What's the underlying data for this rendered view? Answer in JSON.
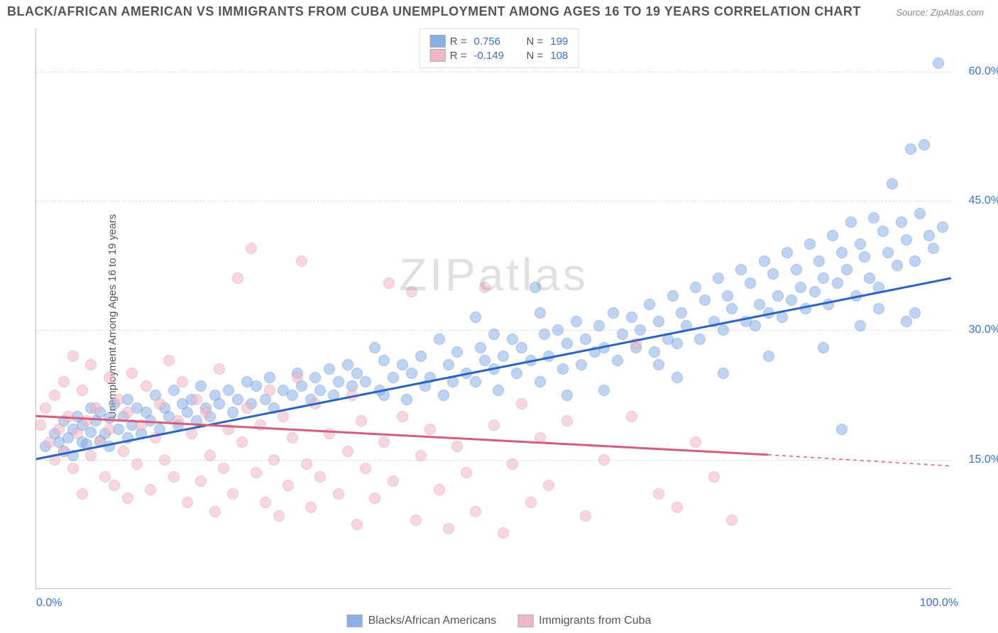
{
  "title": "BLACK/AFRICAN AMERICAN VS IMMIGRANTS FROM CUBA UNEMPLOYMENT AMONG AGES 16 TO 19 YEARS CORRELATION CHART",
  "source": "Source: ZipAtlas.com",
  "watermark": "ZIPatlas",
  "yAxisLabel": "Unemployment Among Ages 16 to 19 years",
  "chart": {
    "type": "scatter",
    "xlim": [
      0,
      100
    ],
    "ylim": [
      0,
      65
    ],
    "xTicks": [
      "0.0%",
      "100.0%"
    ],
    "yTicks": [
      {
        "value": 15,
        "label": "15.0%"
      },
      {
        "value": 30,
        "label": "30.0%"
      },
      {
        "value": 45,
        "label": "45.0%"
      },
      {
        "value": 60,
        "label": "60.0%"
      }
    ],
    "grid_color": "#dddddd",
    "background_color": "#ffffff",
    "marker_radius": 8,
    "marker_opacity": 0.55,
    "axis_label_color": "#3b6fd6",
    "title_fontsize": 18,
    "label_fontsize": 15
  },
  "series": [
    {
      "name": "Blacks/African Americans",
      "color": "#89aee8",
      "stroke": "#5f8fd4",
      "line_color": "#2a63c8",
      "line_width": 3,
      "stats": {
        "R": "0.756",
        "N": "199"
      },
      "trend": {
        "x1": 0,
        "y1": 15,
        "x2": 100,
        "y2": 36
      },
      "points": [
        [
          1,
          16.5
        ],
        [
          2,
          18
        ],
        [
          2.5,
          17
        ],
        [
          3,
          16
        ],
        [
          3,
          19.5
        ],
        [
          3.5,
          17.5
        ],
        [
          4,
          15.5
        ],
        [
          4,
          18.5
        ],
        [
          4.5,
          20
        ],
        [
          5,
          17
        ],
        [
          5,
          19
        ],
        [
          5.5,
          16.8
        ],
        [
          6,
          18.2
        ],
        [
          6,
          21
        ],
        [
          6.5,
          19.5
        ],
        [
          7,
          17.2
        ],
        [
          7,
          20.5
        ],
        [
          7.5,
          18
        ],
        [
          8,
          19.8
        ],
        [
          8,
          16.5
        ],
        [
          8.5,
          21.5
        ],
        [
          9,
          18.5
        ],
        [
          9.5,
          20
        ],
        [
          10,
          17.5
        ],
        [
          10,
          22
        ],
        [
          10.5,
          19
        ],
        [
          11,
          21
        ],
        [
          11.5,
          18
        ],
        [
          12,
          20.5
        ],
        [
          12.5,
          19.5
        ],
        [
          13,
          22.5
        ],
        [
          13.5,
          18.5
        ],
        [
          14,
          21
        ],
        [
          14.5,
          20
        ],
        [
          15,
          23
        ],
        [
          15.5,
          19
        ],
        [
          16,
          21.5
        ],
        [
          16.5,
          20.5
        ],
        [
          17,
          22
        ],
        [
          17.5,
          19.5
        ],
        [
          18,
          23.5
        ],
        [
          18.5,
          21
        ],
        [
          19,
          20
        ],
        [
          19.5,
          22.5
        ],
        [
          20,
          21.5
        ],
        [
          21,
          23
        ],
        [
          21.5,
          20.5
        ],
        [
          22,
          22
        ],
        [
          23,
          24
        ],
        [
          23.5,
          21.5
        ],
        [
          24,
          23.5
        ],
        [
          25,
          22
        ],
        [
          25.5,
          24.5
        ],
        [
          26,
          21
        ],
        [
          27,
          23
        ],
        [
          28,
          22.5
        ],
        [
          28.5,
          25
        ],
        [
          29,
          23.5
        ],
        [
          30,
          22
        ],
        [
          30.5,
          24.5
        ],
        [
          31,
          23
        ],
        [
          32,
          25.5
        ],
        [
          32.5,
          22.5
        ],
        [
          33,
          24
        ],
        [
          34,
          26
        ],
        [
          34.5,
          23.5
        ],
        [
          35,
          25
        ],
        [
          36,
          24
        ],
        [
          37,
          28
        ],
        [
          37.5,
          23
        ],
        [
          38,
          22.5
        ],
        [
          38,
          26.5
        ],
        [
          39,
          24.5
        ],
        [
          40,
          26
        ],
        [
          40.5,
          22
        ],
        [
          41,
          25
        ],
        [
          42,
          27
        ],
        [
          42.5,
          23.5
        ],
        [
          43,
          24.5
        ],
        [
          44,
          29
        ],
        [
          44.5,
          22.5
        ],
        [
          45,
          26
        ],
        [
          45.5,
          24
        ],
        [
          46,
          27.5
        ],
        [
          47,
          25
        ],
        [
          48,
          24
        ],
        [
          48.5,
          28
        ],
        [
          49,
          26.5
        ],
        [
          50,
          25.5
        ],
        [
          50.5,
          23
        ],
        [
          51,
          27
        ],
        [
          52,
          29
        ],
        [
          52.5,
          25
        ],
        [
          53,
          28
        ],
        [
          54,
          26.5
        ],
        [
          54.5,
          35
        ],
        [
          55,
          24
        ],
        [
          55.5,
          29.5
        ],
        [
          56,
          27
        ],
        [
          57,
          30
        ],
        [
          57.5,
          25.5
        ],
        [
          58,
          28.5
        ],
        [
          59,
          31
        ],
        [
          59.5,
          26
        ],
        [
          60,
          29
        ],
        [
          61,
          27.5
        ],
        [
          61.5,
          30.5
        ],
        [
          62,
          28
        ],
        [
          63,
          32
        ],
        [
          63.5,
          26.5
        ],
        [
          64,
          29.5
        ],
        [
          65,
          31.5
        ],
        [
          65.5,
          28
        ],
        [
          66,
          30
        ],
        [
          67,
          33
        ],
        [
          67.5,
          27.5
        ],
        [
          68,
          31
        ],
        [
          69,
          29
        ],
        [
          69.5,
          34
        ],
        [
          70,
          28.5
        ],
        [
          70.5,
          32
        ],
        [
          71,
          30.5
        ],
        [
          72,
          35
        ],
        [
          72.5,
          29
        ],
        [
          73,
          33.5
        ],
        [
          74,
          31
        ],
        [
          74.5,
          36
        ],
        [
          75,
          30
        ],
        [
          75.5,
          34
        ],
        [
          76,
          32.5
        ],
        [
          77,
          37
        ],
        [
          77.5,
          31
        ],
        [
          78,
          35.5
        ],
        [
          78.5,
          30.5
        ],
        [
          79,
          33
        ],
        [
          79.5,
          38
        ],
        [
          80,
          32
        ],
        [
          80.5,
          36.5
        ],
        [
          81,
          34
        ],
        [
          81.5,
          31.5
        ],
        [
          82,
          39
        ],
        [
          82.5,
          33.5
        ],
        [
          83,
          37
        ],
        [
          83.5,
          35
        ],
        [
          84,
          32.5
        ],
        [
          84.5,
          40
        ],
        [
          85,
          34.5
        ],
        [
          85.5,
          38
        ],
        [
          86,
          36
        ],
        [
          86.5,
          33
        ],
        [
          87,
          41
        ],
        [
          87.5,
          35.5
        ],
        [
          88,
          39
        ],
        [
          88.5,
          37
        ],
        [
          89,
          42.5
        ],
        [
          89.5,
          34
        ],
        [
          90,
          40
        ],
        [
          90.5,
          38.5
        ],
        [
          91,
          36
        ],
        [
          91.5,
          43
        ],
        [
          92,
          35
        ],
        [
          92.5,
          41.5
        ],
        [
          93,
          39
        ],
        [
          93.5,
          47
        ],
        [
          94,
          37.5
        ],
        [
          94.5,
          42.5
        ],
        [
          95,
          40.5
        ],
        [
          95.5,
          51
        ],
        [
          96,
          38
        ],
        [
          96.5,
          43.5
        ],
        [
          97,
          51.5
        ],
        [
          97.5,
          41
        ],
        [
          98,
          39.5
        ],
        [
          98.5,
          61
        ],
        [
          99,
          42
        ],
        [
          88,
          18.5
        ],
        [
          95,
          31
        ],
        [
          96,
          32
        ],
        [
          75,
          25
        ],
        [
          80,
          27
        ],
        [
          70,
          24.5
        ],
        [
          68,
          26
        ],
        [
          62,
          23
        ],
        [
          58,
          22.5
        ],
        [
          90,
          30.5
        ],
        [
          92,
          32.5
        ],
        [
          86,
          28
        ],
        [
          50,
          29.5
        ],
        [
          55,
          32
        ],
        [
          48,
          31.5
        ]
      ]
    },
    {
      "name": "Immigrants from Cuba",
      "color": "#f2b7c4",
      "stroke": "#e593a7",
      "line_color": "#d85d7c",
      "line_width": 3,
      "stats": {
        "R": "-0.149",
        "N": "108"
      },
      "trend": {
        "x1": 0,
        "y1": 20,
        "x2": 80,
        "y2": 15.5
      },
      "trend_ext": {
        "x1": 80,
        "y1": 15.5,
        "x2": 100,
        "y2": 14.2
      },
      "points": [
        [
          0.5,
          19
        ],
        [
          1,
          21
        ],
        [
          1.5,
          17
        ],
        [
          2,
          22.5
        ],
        [
          2,
          15
        ],
        [
          2.5,
          18.5
        ],
        [
          3,
          24
        ],
        [
          3,
          16
        ],
        [
          3.5,
          20
        ],
        [
          4,
          27
        ],
        [
          4,
          14
        ],
        [
          4.5,
          18
        ],
        [
          5,
          23
        ],
        [
          5,
          11
        ],
        [
          5.5,
          19.5
        ],
        [
          6,
          26
        ],
        [
          6,
          15.5
        ],
        [
          6.5,
          21
        ],
        [
          7,
          17
        ],
        [
          7.5,
          13
        ],
        [
          8,
          24.5
        ],
        [
          8,
          18.5
        ],
        [
          8.5,
          12
        ],
        [
          9,
          22
        ],
        [
          9.5,
          16
        ],
        [
          10,
          20.5
        ],
        [
          10,
          10.5
        ],
        [
          10.5,
          25
        ],
        [
          11,
          14.5
        ],
        [
          11.5,
          19
        ],
        [
          12,
          23.5
        ],
        [
          12.5,
          11.5
        ],
        [
          13,
          17.5
        ],
        [
          13.5,
          21.5
        ],
        [
          14,
          15
        ],
        [
          14.5,
          26.5
        ],
        [
          15,
          13
        ],
        [
          15.5,
          19.5
        ],
        [
          16,
          24
        ],
        [
          16.5,
          10
        ],
        [
          17,
          18
        ],
        [
          17.5,
          22
        ],
        [
          18,
          12.5
        ],
        [
          18.5,
          20.5
        ],
        [
          19,
          15.5
        ],
        [
          19.5,
          9
        ],
        [
          20,
          25.5
        ],
        [
          20.5,
          14
        ],
        [
          21,
          18.5
        ],
        [
          21.5,
          11
        ],
        [
          22,
          36
        ],
        [
          22.5,
          17
        ],
        [
          23,
          21
        ],
        [
          23.5,
          39.5
        ],
        [
          24,
          13.5
        ],
        [
          24.5,
          19
        ],
        [
          25,
          10
        ],
        [
          25.5,
          23
        ],
        [
          26,
          15
        ],
        [
          26.5,
          8.5
        ],
        [
          27,
          20
        ],
        [
          27.5,
          12
        ],
        [
          28,
          17.5
        ],
        [
          28.5,
          24.5
        ],
        [
          29,
          38
        ],
        [
          29.5,
          14.5
        ],
        [
          30,
          9.5
        ],
        [
          30.5,
          21.5
        ],
        [
          31,
          13
        ],
        [
          32,
          18
        ],
        [
          33,
          11
        ],
        [
          34,
          16
        ],
        [
          34.5,
          22.5
        ],
        [
          35,
          7.5
        ],
        [
          35.5,
          19.5
        ],
        [
          36,
          14
        ],
        [
          37,
          10.5
        ],
        [
          38,
          17
        ],
        [
          38.5,
          35.5
        ],
        [
          39,
          12.5
        ],
        [
          40,
          20
        ],
        [
          41,
          34.5
        ],
        [
          41.5,
          8
        ],
        [
          42,
          15.5
        ],
        [
          43,
          18.5
        ],
        [
          44,
          11.5
        ],
        [
          45,
          7
        ],
        [
          46,
          16.5
        ],
        [
          47,
          13.5
        ],
        [
          48,
          9
        ],
        [
          49,
          35
        ],
        [
          50,
          19
        ],
        [
          51,
          6.5
        ],
        [
          52,
          14.5
        ],
        [
          53,
          21.5
        ],
        [
          54,
          10
        ],
        [
          55,
          17.5
        ],
        [
          56,
          12
        ],
        [
          58,
          19.5
        ],
        [
          60,
          8.5
        ],
        [
          62,
          15
        ],
        [
          65,
          20
        ],
        [
          65.5,
          28.5
        ],
        [
          68,
          11
        ],
        [
          70,
          9.5
        ],
        [
          72,
          17
        ],
        [
          74,
          13
        ],
        [
          76,
          8
        ]
      ]
    }
  ],
  "legendTop": {
    "rows": [
      {
        "swatch": "#89aee8",
        "R_label": "R =",
        "R": "0.756",
        "N_label": "N =",
        "N": "199"
      },
      {
        "swatch": "#f2b7c4",
        "R_label": "R =",
        "R": "-0.149",
        "N_label": "N =",
        "N": "108"
      }
    ]
  },
  "legendBottom": [
    {
      "swatch": "#89aee8",
      "label": "Blacks/African Americans"
    },
    {
      "swatch": "#f2b7c4",
      "label": "Immigrants from Cuba"
    }
  ]
}
